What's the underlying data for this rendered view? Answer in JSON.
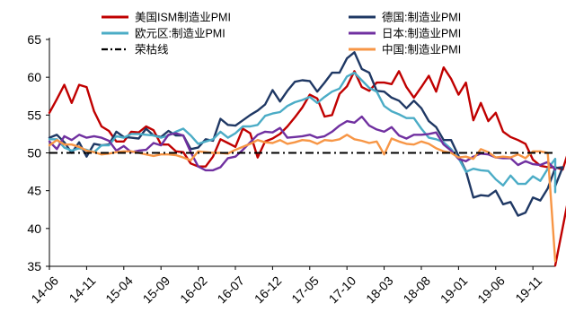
{
  "chart_data": {
    "type": "line",
    "y_axis": {
      "range": [
        35,
        65
      ],
      "ticks": [
        35,
        40,
        45,
        50,
        55,
        60,
        65
      ]
    },
    "x_axis": {
      "range": [
        "14-06",
        "20-02"
      ],
      "tick_labels": [
        "14-06",
        "14-11",
        "15-04",
        "15-09",
        "16-02",
        "16-07",
        "16-12",
        "17-05",
        "17-10",
        "18-03",
        "18-08",
        "19-01",
        "19-06",
        "19-11"
      ]
    },
    "legend": {
      "placement": "top",
      "columns": 2
    },
    "grid": false,
    "series": [
      {
        "name": "美国ISM制造业PMI",
        "color": "#c00000",
        "style": "solid",
        "values": [
          55.3,
          57.1,
          59.0,
          56.6,
          59.0,
          58.7,
          55.5,
          53.5,
          52.9,
          51.5,
          51.5,
          52.8,
          52.7,
          53.5,
          53.0,
          51.1,
          51.1,
          50.2,
          50.1,
          48.6,
          48.2,
          48.2,
          49.5,
          51.8,
          51.3,
          50.8,
          53.2,
          52.6,
          49.4,
          51.5,
          51.9,
          52.5,
          53.5,
          54.7,
          56.0,
          57.7,
          57.2,
          54.8,
          55.0,
          57.8,
          58.8,
          60.8,
          58.7,
          58.2,
          59.3,
          59.3,
          59.1,
          60.8,
          58.7,
          57.3,
          58.7,
          60.2,
          58.1,
          61.3,
          59.8,
          57.7,
          59.3,
          54.3,
          56.6,
          54.2,
          55.3,
          52.8,
          52.1,
          51.7,
          51.2,
          49.1,
          48.3,
          48.1,
          48.1,
          47.8,
          50.9,
          50.1
        ],
        "extra_point": {
          "x": "20-02",
          "value": 35.1
        }
      },
      {
        "name": "德国:制造业PMI",
        "color": "#1f3864",
        "style": "solid",
        "values": [
          52.0,
          52.4,
          51.4,
          50.0,
          51.4,
          49.5,
          51.2,
          51.0,
          51.1,
          52.8,
          52.1,
          52.0,
          51.9,
          53.2,
          52.3,
          52.1,
          52.9,
          52.3,
          52.3,
          50.5,
          50.7,
          51.8,
          51.6,
          54.5,
          53.7,
          53.6,
          54.3,
          55.0,
          55.6,
          56.4,
          58.3,
          56.8,
          58.2,
          59.4,
          59.6,
          59.5,
          58.1,
          59.3,
          60.6,
          60.6,
          62.5,
          63.3,
          61.1,
          60.6,
          58.2,
          58.1,
          57.3,
          56.9,
          55.9,
          56.9,
          55.9,
          54.2,
          53.4,
          51.7,
          51.7,
          49.6,
          47.6,
          44.1,
          44.4,
          44.3,
          45.0,
          43.2,
          43.5,
          41.7,
          42.1,
          44.1,
          43.7,
          45.3,
          48.0,
          48.1
        ],
        "extra_point": {
          "x": "20-02",
          "value": 45.6
        }
      },
      {
        "name": "欧元区:制造业PMI",
        "color": "#4bacc6",
        "style": "solid",
        "values": [
          51.8,
          51.8,
          50.7,
          50.3,
          50.6,
          50.4,
          50.1,
          51.0,
          51.0,
          52.2,
          52.0,
          52.5,
          52.5,
          52.4,
          52.3,
          52.0,
          52.3,
          52.8,
          53.2,
          52.3,
          51.2,
          51.5,
          51.8,
          52.8,
          52.0,
          52.6,
          53.5,
          53.5,
          53.7,
          54.9,
          55.2,
          55.4,
          56.2,
          56.7,
          57.0,
          57.4,
          56.6,
          57.4,
          58.1,
          58.5,
          60.1,
          60.6,
          59.6,
          58.6,
          58.1,
          56.2,
          55.5,
          55.1,
          54.6,
          54.6,
          53.2,
          52.0,
          51.8,
          51.4,
          50.5,
          49.3,
          47.5,
          47.9,
          47.7,
          47.6,
          46.5,
          45.7,
          47.0,
          45.9,
          45.9,
          46.9,
          46.3,
          47.9,
          49.2
        ],
        "extra_point": {
          "x": "20-02",
          "value": 44.8
        }
      },
      {
        "name": "日本:制造业PMI",
        "color": "#7030a0",
        "style": "solid",
        "values": [
          51.5,
          50.5,
          52.2,
          51.7,
          52.4,
          52.0,
          52.2,
          52.0,
          51.6,
          50.3,
          50.9,
          50.1,
          50.3,
          50.4,
          51.3,
          51.0,
          52.4,
          52.6,
          52.3,
          50.1,
          48.2,
          47.7,
          47.7,
          48.1,
          49.3,
          49.5,
          50.4,
          51.4,
          52.4,
          52.8,
          52.7,
          53.3,
          52.0,
          52.1,
          52.2,
          52.4,
          52.0,
          52.2,
          52.8,
          53.6,
          54.2,
          54.0,
          54.8,
          53.6,
          53.1,
          52.8,
          53.4,
          52.3,
          51.9,
          52.4,
          52.4,
          52.5,
          52.7,
          51.1,
          50.3,
          49.2,
          48.9,
          49.5,
          49.9,
          49.8,
          49.4,
          49.3,
          49.3,
          48.4,
          48.9,
          48.5,
          48.4,
          48.8
        ],
        "extra_point": {
          "x": "20-02",
          "value": 47.8
        }
      },
      {
        "name": "中国:制造业PMI",
        "color": "#f79646",
        "style": "solid",
        "values": [
          51.0,
          51.7,
          51.1,
          51.1,
          50.8,
          50.3,
          50.1,
          49.8,
          49.9,
          50.1,
          50.2,
          50.2,
          50.0,
          49.8,
          49.6,
          49.8,
          49.8,
          49.7,
          49.4,
          49.0,
          50.2,
          50.1,
          50.0,
          50.0,
          49.9,
          50.4,
          50.8,
          51.2,
          51.7,
          51.4,
          51.3,
          51.7,
          51.2,
          51.4,
          51.7,
          51.6,
          51.2,
          51.7,
          51.6,
          51.8,
          52.4,
          51.8,
          51.6,
          51.3,
          51.5,
          49.8,
          51.9,
          51.5,
          51.2,
          51.1,
          51.5,
          51.2,
          50.6,
          50.2,
          50.0,
          49.4,
          49.5,
          49.2,
          50.5,
          50.1,
          49.4,
          49.5,
          49.4,
          49.8,
          49.3,
          50.2,
          50.2,
          50.0
        ],
        "extra_point": {
          "x": "20-02",
          "value": 35.7
        }
      },
      {
        "name": "荣枯线",
        "color": "#000000",
        "style": "dash-dot",
        "constant": 50
      }
    ]
  }
}
